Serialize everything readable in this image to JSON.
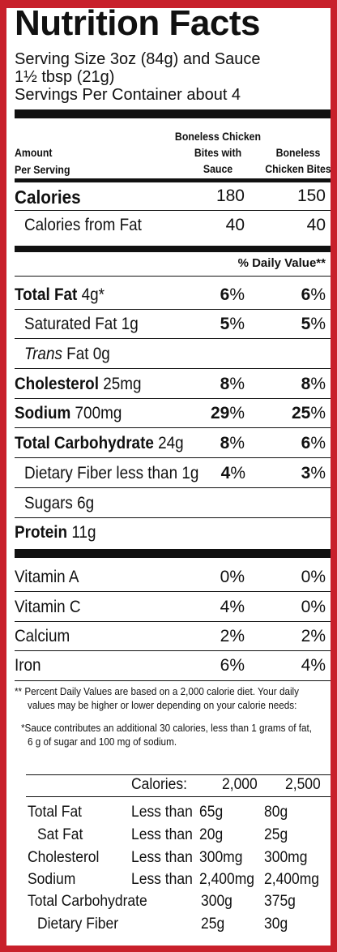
{
  "title": "Nutrition Facts",
  "serving_size": "Serving Size 3oz (84g) and Sauce",
  "serving_size_2": "1½ tbsp (21g)",
  "servings_per_container": "Servings Per Container about 4",
  "header": {
    "amount_label_1": "Amount",
    "amount_label_2": "Per Serving",
    "col1_line1": "Boneless Chicken",
    "col1_line2": "Bites with",
    "col1_line3": "Sauce",
    "col2_line1": "Boneless",
    "col2_line2": "Chicken Bites"
  },
  "calories": {
    "label": "Calories",
    "v1": "180",
    "v2": "150"
  },
  "calories_fat": {
    "label": "Calories from Fat",
    "v1": "40",
    "v2": "40"
  },
  "dv_header": "% Daily Value**",
  "nutrients": [
    {
      "name": "Total Fat",
      "amount": " 4g*",
      "v1_num": "6",
      "v2_num": "6"
    },
    {
      "name": "Saturated Fat 1g",
      "amount": "",
      "v1_num": "5",
      "v2_num": "5"
    },
    {
      "name": "Trans",
      "amount": " Fat 0g",
      "v1_num": "",
      "v2_num": ""
    },
    {
      "name": "Cholesterol",
      "amount": " 25mg",
      "v1_num": "8",
      "v2_num": "8"
    },
    {
      "name": "Sodium",
      "amount": " 700mg",
      "v1_num": "29",
      "v2_num": "25"
    },
    {
      "name": "Total Carbohydrate",
      "amount": " 24g",
      "v1_num": "8",
      "v2_num": "6"
    },
    {
      "name": "Dietary Fiber less than 1g",
      "amount": "",
      "v1_num": "4",
      "v2_num": "3"
    },
    {
      "name": "Sugars 6g",
      "amount": "",
      "v1_num": "",
      "v2_num": ""
    },
    {
      "name": "Protein",
      "amount": " 11g",
      "v1_num": "",
      "v2_num": ""
    }
  ],
  "pct_sign": "%",
  "vitamins": [
    {
      "name": "Vitamin A",
      "v1": "0%",
      "v2": "0%"
    },
    {
      "name": "Vitamin C",
      "v1": "4%",
      "v2": "0%"
    },
    {
      "name": "Calcium",
      "v1": "2%",
      "v2": "2%"
    },
    {
      "name": "Iron",
      "v1": "6%",
      "v2": "4%"
    }
  ],
  "footnote_1a": "** Percent Daily Values are based on a 2,000 calorie diet. Your daily",
  "footnote_1b": "values may be higher or lower depending on your calorie needs:",
  "footnote_2a": "*Sauce contributes an additional 30 calories, less than 1 grams of fat,",
  "footnote_2b": "6 g of sugar and 100 mg of sodium.",
  "dv_table": {
    "calories_label": "Calories:",
    "cal_2000": "2,000",
    "cal_2500": "2,500",
    "rows": [
      {
        "name": "Total Fat",
        "limit": "Less than",
        "a": "65g",
        "b": "80g"
      },
      {
        "name": "Sat Fat",
        "limit": "Less than",
        "a": "20g",
        "b": "25g"
      },
      {
        "name": "Cholesterol",
        "limit": "Less than",
        "a": "300mg",
        "b": "300mg"
      },
      {
        "name": "Sodium",
        "limit": "Less than",
        "a": "2,400mg",
        "b": "2,400mg"
      },
      {
        "name": "Total Carbohydrate",
        "limit": "",
        "a": "300g",
        "b": "375g"
      },
      {
        "name": "Dietary Fiber",
        "limit": "",
        "a": "25g",
        "b": "30g"
      }
    ]
  }
}
